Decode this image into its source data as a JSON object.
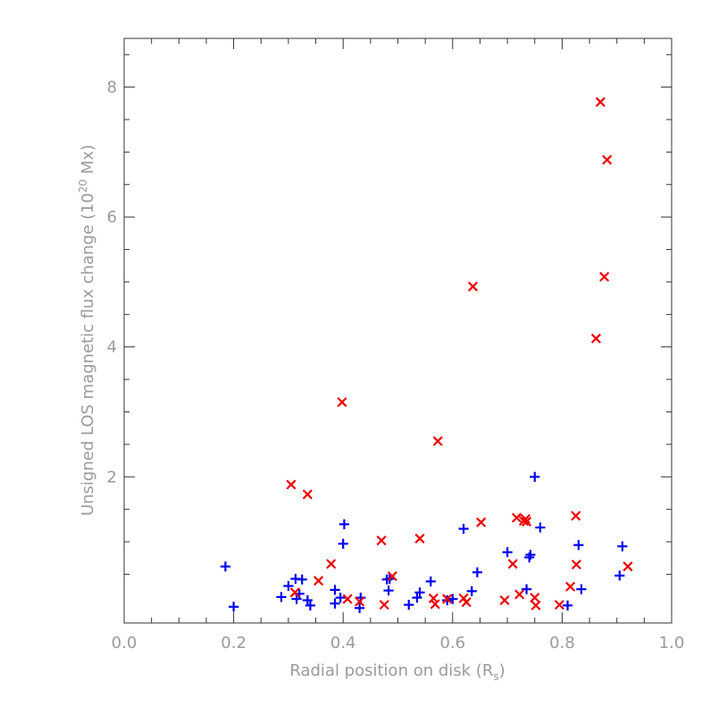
{
  "chart_data": {
    "type": "scatter",
    "title": "",
    "xlabel_main": "Radial position on disk (R",
    "xlabel_sub": "s",
    "xlabel_close": ")",
    "ylabel_main": "Unsigned LOS magnetic flux change (10",
    "ylabel_sup": "20",
    "ylabel_close": " Mx)",
    "xlim": [
      0.0,
      1.0
    ],
    "ylim": [
      -0.25,
      8.75
    ],
    "x_ticks": [
      0.0,
      0.2,
      0.4,
      0.6,
      0.8,
      1.0
    ],
    "x_tick_labels": [
      "0.0",
      "0.2",
      "0.4",
      "0.6",
      "0.8",
      "1.0"
    ],
    "y_ticks": [
      2,
      4,
      6,
      8
    ],
    "y_tick_labels": [
      "2",
      "4",
      "6",
      "8"
    ],
    "grid": false,
    "series": [
      {
        "marker": "plus",
        "color": "#0000ee",
        "points": [
          [
            0.185,
            0.62
          ],
          [
            0.2,
            0.0
          ],
          [
            0.287,
            0.15
          ],
          [
            0.3,
            0.32
          ],
          [
            0.313,
            0.43
          ],
          [
            0.315,
            0.12
          ],
          [
            0.32,
            0.2
          ],
          [
            0.325,
            0.42
          ],
          [
            0.335,
            0.1
          ],
          [
            0.34,
            0.02
          ],
          [
            0.385,
            0.05
          ],
          [
            0.385,
            0.26
          ],
          [
            0.395,
            0.14
          ],
          [
            0.4,
            0.97
          ],
          [
            0.402,
            1.27
          ],
          [
            0.43,
            -0.02
          ],
          [
            0.432,
            0.14
          ],
          [
            0.48,
            0.42
          ],
          [
            0.483,
            0.25
          ],
          [
            0.485,
            0.43
          ],
          [
            0.52,
            0.03
          ],
          [
            0.535,
            0.14
          ],
          [
            0.54,
            0.22
          ],
          [
            0.56,
            0.39
          ],
          [
            0.59,
            0.1
          ],
          [
            0.6,
            0.12
          ],
          [
            0.62,
            1.2
          ],
          [
            0.635,
            0.24
          ],
          [
            0.645,
            0.53
          ],
          [
            0.7,
            0.84
          ],
          [
            0.735,
            0.27
          ],
          [
            0.74,
            0.76
          ],
          [
            0.742,
            0.8
          ],
          [
            0.75,
            2.0
          ],
          [
            0.76,
            1.22
          ],
          [
            0.81,
            0.02
          ],
          [
            0.83,
            0.95
          ],
          [
            0.835,
            0.27
          ],
          [
            0.905,
            0.48
          ],
          [
            0.91,
            0.93
          ]
        ]
      },
      {
        "marker": "cross",
        "color": "#ee0000",
        "points": [
          [
            0.305,
            1.88
          ],
          [
            0.312,
            0.22
          ],
          [
            0.335,
            1.73
          ],
          [
            0.355,
            0.4
          ],
          [
            0.378,
            0.66
          ],
          [
            0.398,
            3.15
          ],
          [
            0.408,
            0.12
          ],
          [
            0.43,
            0.08
          ],
          [
            0.47,
            1.02
          ],
          [
            0.475,
            0.03
          ],
          [
            0.49,
            0.47
          ],
          [
            0.54,
            1.05
          ],
          [
            0.565,
            0.13
          ],
          [
            0.568,
            0.04
          ],
          [
            0.573,
            2.55
          ],
          [
            0.59,
            0.12
          ],
          [
            0.62,
            0.13
          ],
          [
            0.625,
            0.07
          ],
          [
            0.637,
            4.93
          ],
          [
            0.652,
            1.3
          ],
          [
            0.695,
            0.1
          ],
          [
            0.71,
            0.66
          ],
          [
            0.717,
            1.37
          ],
          [
            0.722,
            0.19
          ],
          [
            0.73,
            1.32
          ],
          [
            0.733,
            1.35
          ],
          [
            0.735,
            1.31
          ],
          [
            0.75,
            0.14
          ],
          [
            0.752,
            0.02
          ],
          [
            0.795,
            0.03
          ],
          [
            0.815,
            0.31
          ],
          [
            0.825,
            1.4
          ],
          [
            0.826,
            0.65
          ],
          [
            0.862,
            4.13
          ],
          [
            0.87,
            7.77
          ],
          [
            0.877,
            5.08
          ],
          [
            0.882,
            6.88
          ],
          [
            0.92,
            0.62
          ]
        ]
      }
    ]
  }
}
